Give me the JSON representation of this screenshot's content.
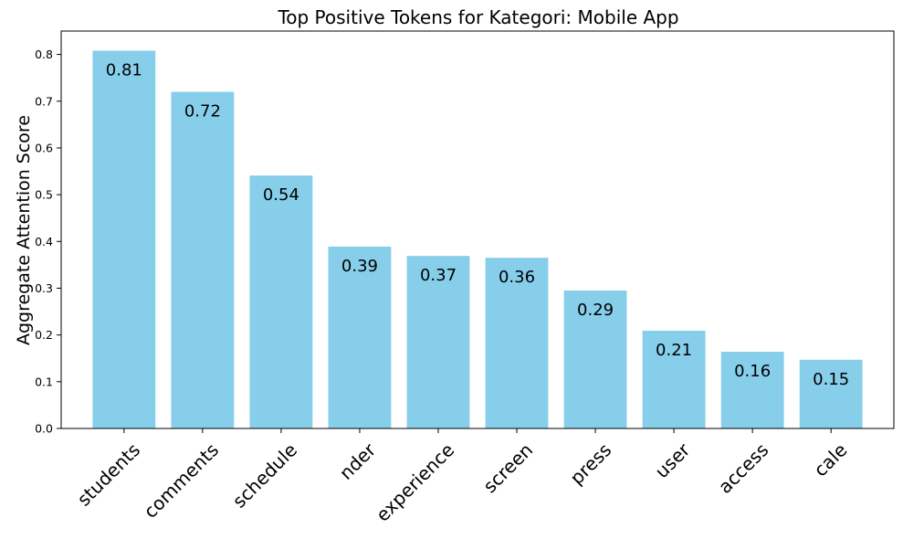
{
  "chart_data": {
    "type": "bar",
    "title": "Top Positive Tokens for Kategori: Mobile App",
    "xlabel": "",
    "ylabel": "Aggregate Attention Score",
    "categories": [
      "students",
      "comments",
      "schedule",
      "nder",
      "experience",
      "screen",
      "press",
      "user",
      "access",
      "cale"
    ],
    "values": [
      0.808,
      0.72,
      0.541,
      0.389,
      0.369,
      0.365,
      0.295,
      0.209,
      0.164,
      0.147
    ],
    "data_labels": [
      "0.81",
      "0.72",
      "0.54",
      "0.39",
      "0.37",
      "0.36",
      "0.29",
      "0.21",
      "0.16",
      "0.15"
    ],
    "ylim": [
      0,
      0.85
    ],
    "yticks": [
      0.0,
      0.1,
      0.2,
      0.3,
      0.4,
      0.5,
      0.6,
      0.7,
      0.8
    ],
    "ytick_labels": [
      "0.0",
      "0.1",
      "0.2",
      "0.3",
      "0.4",
      "0.5",
      "0.6",
      "0.7",
      "0.8"
    ],
    "grid": false,
    "colors": {
      "bar": "#87ceeb",
      "axis": "#000000"
    }
  }
}
